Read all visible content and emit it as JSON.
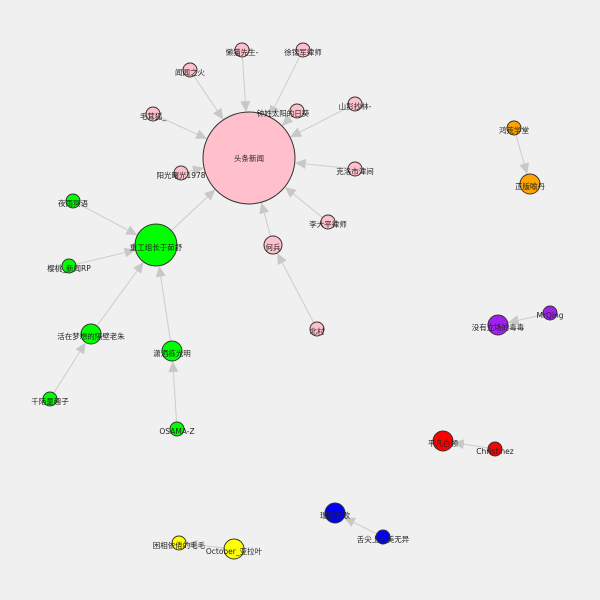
{
  "colors": {
    "background": "#f0f0f0",
    "edge": "#cfcfcf",
    "pink": "#ffc0cb",
    "green": "#00ff00",
    "orange": "#ffa500",
    "purple": "#a020f0",
    "red": "#ff0000",
    "blue": "#0000ff",
    "yellow": "#ffff00"
  },
  "nodes": [
    {
      "id": "toutiao",
      "label": "头条新闻",
      "color": "pink"
    },
    {
      "id": "lanren",
      "label": "懒猫先生-",
      "color": "pink"
    },
    {
      "id": "xu",
      "label": "徐锦军律师",
      "color": "pink"
    },
    {
      "id": "wenwen",
      "label": "闻闻之火",
      "color": "pink"
    },
    {
      "id": "zhong",
      "label": "钟姓太阳的日葵",
      "color": "pink"
    },
    {
      "id": "shanshi",
      "label": "山彭抄林-",
      "color": "pink"
    },
    {
      "id": "maohu",
      "label": "毛茸狐_",
      "color": "pink"
    },
    {
      "id": "yangguang",
      "label": "阳光曙光1978",
      "color": "pink"
    },
    {
      "id": "kelu",
      "label": "克洛市津间",
      "color": "pink"
    },
    {
      "id": "li",
      "label": "李大平律师",
      "color": "pink"
    },
    {
      "id": "hebing",
      "label": "何兵",
      "color": "pink"
    },
    {
      "id": "beicun",
      "label": "北村",
      "color": "pink"
    },
    {
      "id": "chonggong",
      "label": "重工组长于茹舒",
      "color": "green"
    },
    {
      "id": "yeyu",
      "label": "夜雨冥语",
      "color": "green"
    },
    {
      "id": "yingtao",
      "label": "樱桃_新闻RP",
      "color": "green"
    },
    {
      "id": "huozai",
      "label": "活在梦想的隔壁老朱",
      "color": "green"
    },
    {
      "id": "qianmo",
      "label": "千陌童趣子",
      "color": "green"
    },
    {
      "id": "xiaosa",
      "label": "潇洒栋光明",
      "color": "green"
    },
    {
      "id": "osama",
      "label": "OSAMA-Z",
      "color": "green"
    },
    {
      "id": "honghuang",
      "label": "鸿荒学堂",
      "color": "orange"
    },
    {
      "id": "gongfu",
      "label": "正版喻丹",
      "color": "orange"
    },
    {
      "id": "mrqing",
      "label": "MrQing",
      "color": "purple"
    },
    {
      "id": "meiyou",
      "label": "没有立场的毒毒",
      "color": "purple"
    },
    {
      "id": "pingzhi",
      "label": "平凡白领",
      "color": "red"
    },
    {
      "id": "christinez",
      "label": "Christinez",
      "color": "red"
    },
    {
      "id": "lubi",
      "label": "瑞丽新歌",
      "color": "blue"
    },
    {
      "id": "shejian",
      "label": "舌尖上的美无异",
      "color": "blue"
    },
    {
      "id": "kunjuan",
      "label": "困相依倦的毛毛",
      "color": "yellow"
    },
    {
      "id": "october",
      "label": "October_亚拉叶",
      "color": "yellow"
    }
  ],
  "edges": [
    {
      "source": "lanren",
      "target": "toutiao"
    },
    {
      "source": "xu",
      "target": "toutiao"
    },
    {
      "source": "wenwen",
      "target": "toutiao"
    },
    {
      "source": "zhong",
      "target": "toutiao"
    },
    {
      "source": "shanshi",
      "target": "toutiao"
    },
    {
      "source": "maohu",
      "target": "toutiao"
    },
    {
      "source": "yangguang",
      "target": "toutiao"
    },
    {
      "source": "kelu",
      "target": "toutiao"
    },
    {
      "source": "li",
      "target": "toutiao"
    },
    {
      "source": "hebing",
      "target": "toutiao"
    },
    {
      "source": "chonggong",
      "target": "toutiao"
    },
    {
      "source": "beicun",
      "target": "hebing"
    },
    {
      "source": "yeyu",
      "target": "chonggong"
    },
    {
      "source": "yingtao",
      "target": "chonggong"
    },
    {
      "source": "huozai",
      "target": "chonggong"
    },
    {
      "source": "xiaosa",
      "target": "chonggong"
    },
    {
      "source": "qianmo",
      "target": "huozai"
    },
    {
      "source": "osama",
      "target": "xiaosa"
    },
    {
      "source": "honghuang",
      "target": "gongfu"
    },
    {
      "source": "mrqing",
      "target": "meiyou"
    },
    {
      "source": "christinez",
      "target": "pingzhi"
    },
    {
      "source": "shejian",
      "target": "lubi"
    },
    {
      "source": "october",
      "target": "kunjuan"
    }
  ]
}
